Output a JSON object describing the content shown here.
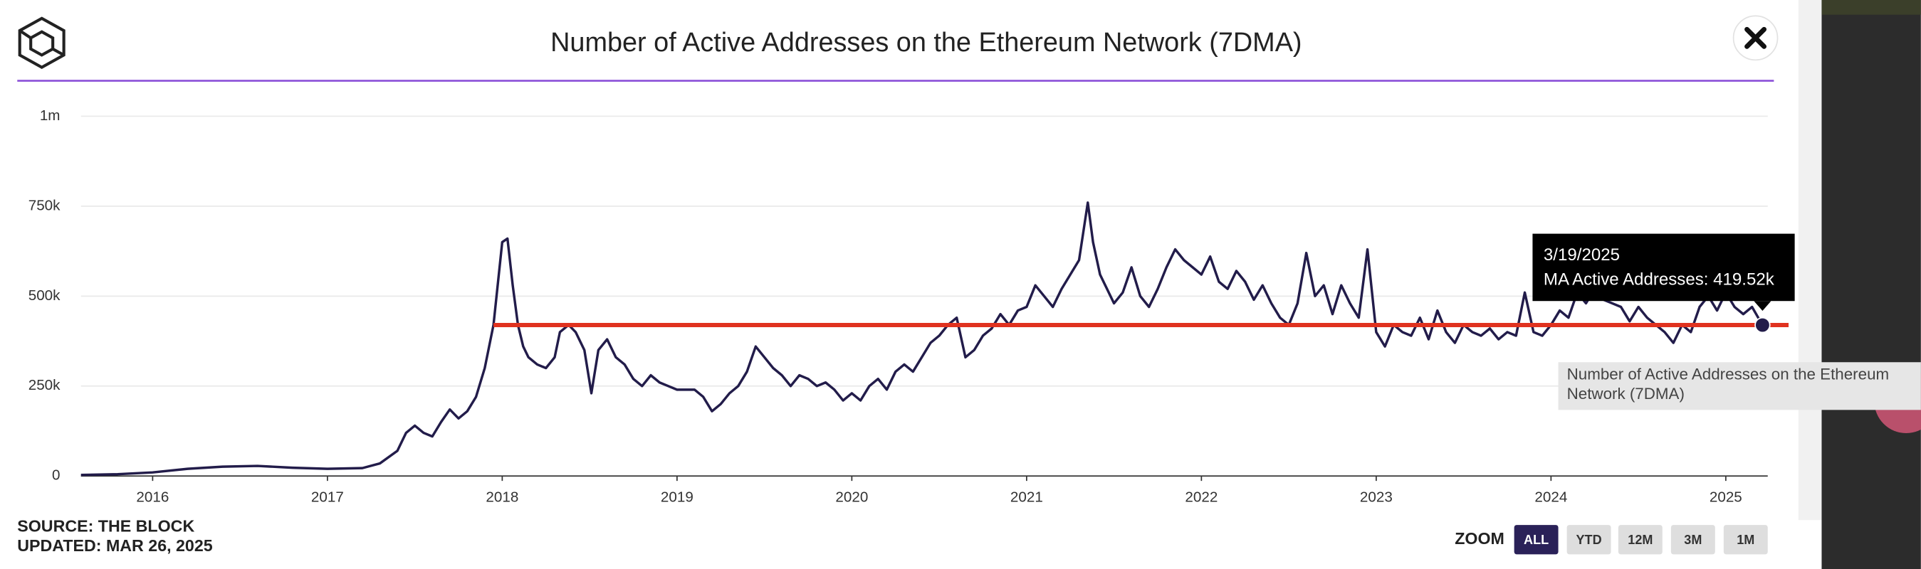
{
  "chart_data": {
    "type": "line",
    "title": "Number of Active Addresses on the Ethereum Network (7DMA)",
    "x": [
      2015.59,
      2015.8,
      2016.0,
      2016.2,
      2016.4,
      2016.6,
      2016.8,
      2017.0,
      2017.2,
      2017.3,
      2017.4,
      2017.45,
      2017.5,
      2017.55,
      2017.6,
      2017.65,
      2017.7,
      2017.75,
      2017.8,
      2017.85,
      2017.9,
      2017.95,
      2018.0,
      2018.03,
      2018.06,
      2018.09,
      2018.12,
      2018.15,
      2018.2,
      2018.25,
      2018.3,
      2018.33,
      2018.38,
      2018.42,
      2018.47,
      2018.51,
      2018.55,
      2018.6,
      2018.65,
      2018.7,
      2018.75,
      2018.8,
      2018.85,
      2018.9,
      2018.95,
      2019.0,
      2019.1,
      2019.15,
      2019.2,
      2019.25,
      2019.3,
      2019.35,
      2019.4,
      2019.45,
      2019.5,
      2019.55,
      2019.6,
      2019.65,
      2019.7,
      2019.75,
      2019.8,
      2019.85,
      2019.9,
      2019.95,
      2020.0,
      2020.05,
      2020.1,
      2020.15,
      2020.2,
      2020.25,
      2020.3,
      2020.35,
      2020.4,
      2020.45,
      2020.5,
      2020.55,
      2020.6,
      2020.65,
      2020.7,
      2020.75,
      2020.8,
      2020.85,
      2020.9,
      2020.95,
      2021.0,
      2021.05,
      2021.1,
      2021.15,
      2021.2,
      2021.25,
      2021.3,
      2021.35,
      2021.38,
      2021.42,
      2021.5,
      2021.55,
      2021.6,
      2021.65,
      2021.7,
      2021.75,
      2021.8,
      2021.85,
      2021.9,
      2021.95,
      2022.0,
      2022.05,
      2022.1,
      2022.15,
      2022.2,
      2022.25,
      2022.3,
      2022.35,
      2022.4,
      2022.45,
      2022.5,
      2022.55,
      2022.6,
      2022.65,
      2022.7,
      2022.75,
      2022.8,
      2022.85,
      2022.9,
      2022.95,
      2023.0,
      2023.05,
      2023.1,
      2023.15,
      2023.2,
      2023.25,
      2023.3,
      2023.35,
      2023.4,
      2023.45,
      2023.5,
      2023.55,
      2023.6,
      2023.65,
      2023.7,
      2023.75,
      2023.8,
      2023.85,
      2023.9,
      2023.95,
      2024.0,
      2024.05,
      2024.1,
      2024.15,
      2024.2,
      2024.25,
      2024.3,
      2024.35,
      2024.4,
      2024.45,
      2024.5,
      2024.55,
      2024.6,
      2024.65,
      2024.7,
      2024.75,
      2024.8,
      2024.85,
      2024.9,
      2024.95,
      2025.0,
      2025.05,
      2025.1,
      2025.15,
      2025.21
    ],
    "series": [
      {
        "name": "Number of Active Addresses on the Ethereum Network (7DMA)",
        "color": "#221c4a",
        "values": [
          3000,
          5000,
          10000,
          20000,
          26000,
          28000,
          23000,
          20000,
          22000,
          35000,
          70000,
          120000,
          140000,
          120000,
          110000,
          150000,
          185000,
          160000,
          180000,
          220000,
          300000,
          420000,
          650000,
          660000,
          530000,
          420000,
          360000,
          330000,
          310000,
          300000,
          330000,
          400000,
          420000,
          400000,
          350000,
          230000,
          350000,
          380000,
          330000,
          310000,
          270000,
          250000,
          280000,
          260000,
          250000,
          240000,
          240000,
          220000,
          180000,
          200000,
          230000,
          250000,
          290000,
          360000,
          330000,
          300000,
          280000,
          250000,
          280000,
          270000,
          250000,
          260000,
          240000,
          210000,
          230000,
          210000,
          250000,
          270000,
          240000,
          290000,
          310000,
          290000,
          330000,
          370000,
          390000,
          420000,
          440000,
          330000,
          350000,
          390000,
          410000,
          450000,
          420000,
          460000,
          470000,
          530000,
          500000,
          470000,
          520000,
          560000,
          600000,
          760000,
          650000,
          560000,
          480000,
          510000,
          580000,
          500000,
          470000,
          520000,
          580000,
          630000,
          600000,
          580000,
          560000,
          610000,
          540000,
          520000,
          570000,
          540000,
          490000,
          530000,
          480000,
          440000,
          420000,
          480000,
          620000,
          500000,
          530000,
          450000,
          530000,
          480000,
          440000,
          630000,
          400000,
          360000,
          420000,
          400000,
          390000,
          440000,
          380000,
          460000,
          400000,
          370000,
          420000,
          400000,
          390000,
          410000,
          380000,
          400000,
          390000,
          510000,
          400000,
          390000,
          420000,
          460000,
          440000,
          510000,
          480000,
          520000,
          490000,
          480000,
          470000,
          430000,
          470000,
          440000,
          420000,
          400000,
          370000,
          420000,
          400000,
          470000,
          500000,
          460000,
          510000,
          470000,
          450000,
          470000,
          419520
        ]
      }
    ],
    "xlim": [
      2015.59,
      2025.24
    ],
    "xticks": [
      2016,
      2017,
      2018,
      2019,
      2020,
      2021,
      2022,
      2023,
      2024,
      2025
    ],
    "ylim": [
      0,
      1000000
    ],
    "yticks": [
      0,
      {
        "value": 250000,
        "label": "250k"
      },
      {
        "value": 500000,
        "label": "500k"
      },
      {
        "value": 750000,
        "label": "750k"
      },
      {
        "value": 1000000,
        "label": "1m"
      }
    ],
    "grid": true,
    "reference_line": {
      "value": 419520,
      "color": "#e0321f"
    },
    "tooltip": {
      "date": "3/19/2025",
      "text": "MA Active Addresses: 419.52k"
    }
  },
  "footer": {
    "source": "SOURCE: THE BLOCK",
    "updated": "UPDATED: MAR 26, 2025"
  },
  "zoom": {
    "label": "ZOOM",
    "buttons": [
      "ALL",
      "YTD",
      "12M",
      "3M",
      "1M"
    ],
    "active": "ALL"
  }
}
